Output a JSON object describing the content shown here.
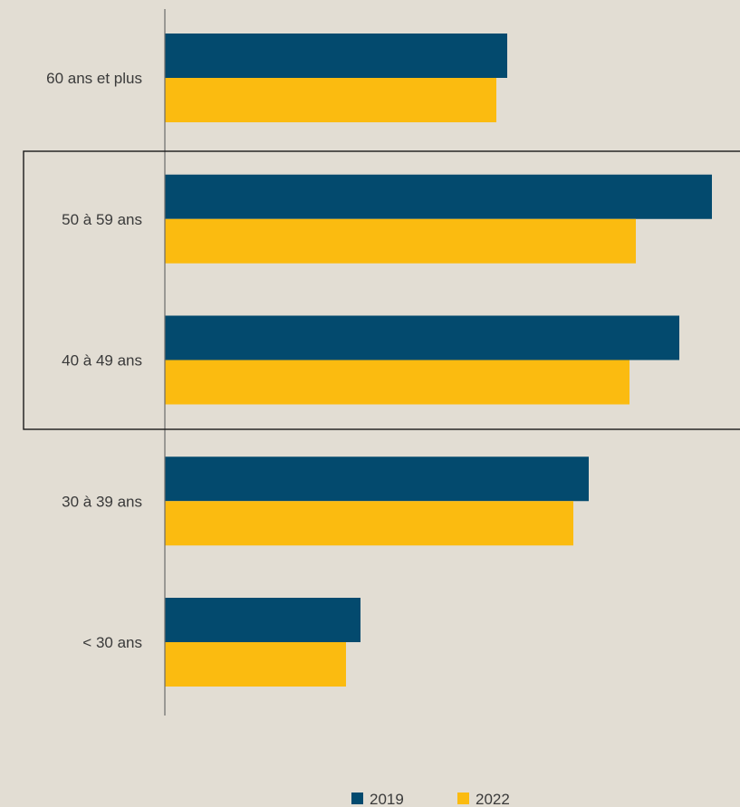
{
  "chart_data": {
    "type": "bar",
    "orientation": "horizontal",
    "title": "",
    "xlabel": "",
    "ylabel": "",
    "categories": [
      "60 ans et plus",
      "50 à 59 ans",
      "40 à 49 ans",
      "30 à 39 ans",
      "< 30 ans"
    ],
    "series": [
      {
        "name": "2019",
        "color": "#034a6e",
        "values": [
          378,
          604,
          568,
          468,
          216
        ]
      },
      {
        "name": "2022",
        "color": "#fbbb10",
        "values": [
          366,
          520,
          513,
          451,
          200
        ]
      }
    ],
    "xlim": [
      0,
      635
    ],
    "highlighted_categories": [
      "50 à 59 ans",
      "40 à 49 ans"
    ],
    "legend": {
      "position": "bottom"
    },
    "grid": false
  }
}
